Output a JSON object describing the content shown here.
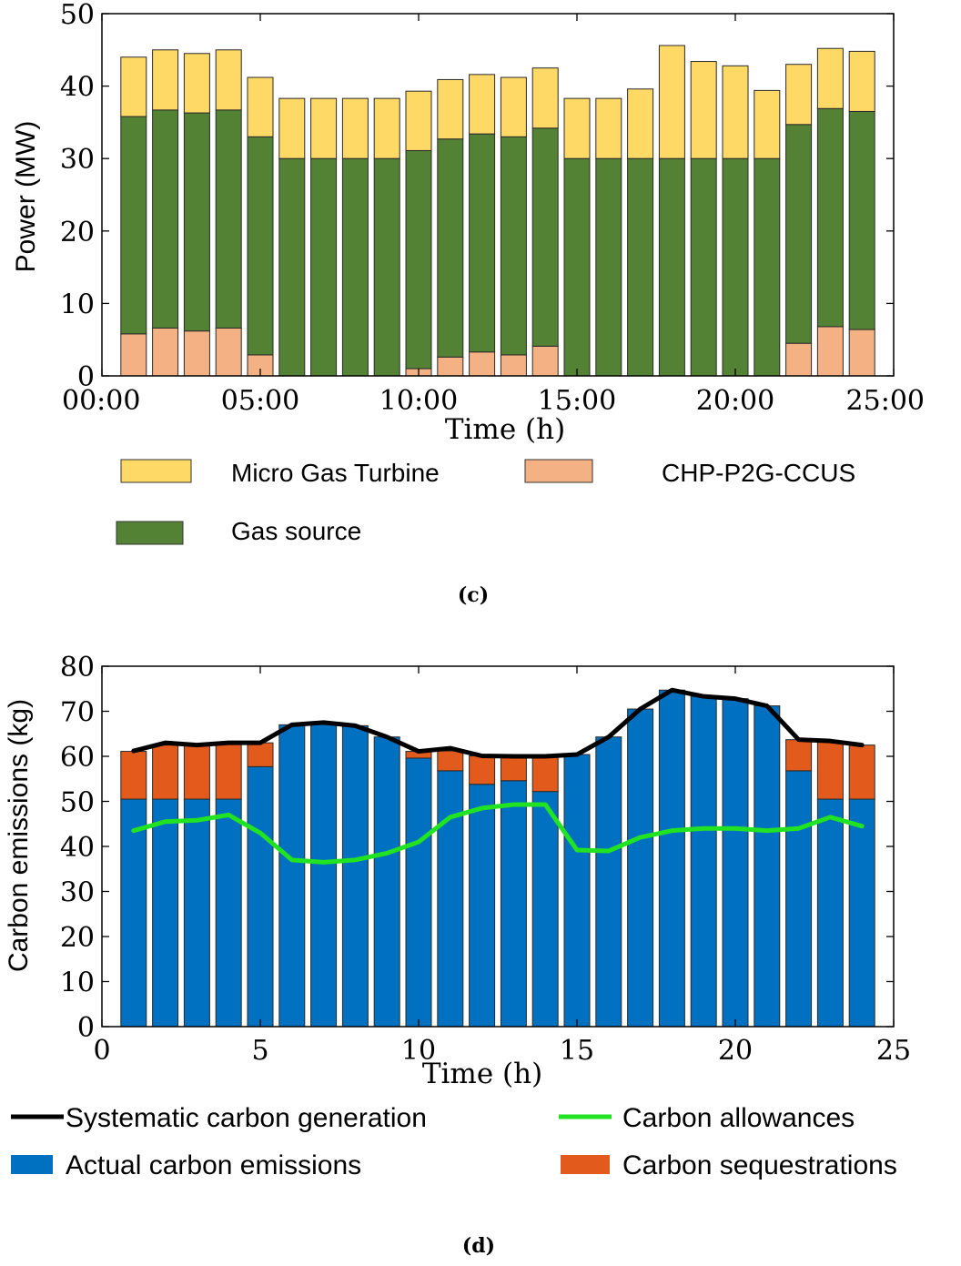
{
  "colors": {
    "micro_gas_turbine": "#FFD966",
    "chp_p2g_ccus": "#F4B183",
    "gas_source": "#548235",
    "actual_emissions": "#0070C0",
    "sequestrations": "#E25A1C",
    "systematic_line": "#000000",
    "allowances_line": "#22E322"
  },
  "chart_data": [
    {
      "id": "c",
      "type": "bar",
      "stacked": true,
      "panel_label": "(c)",
      "xlabel": "Time (h)",
      "ylabel": "Power (MW)",
      "ylim": [
        0,
        50
      ],
      "yticks": [
        0,
        10,
        20,
        30,
        40,
        50
      ],
      "xlim": [
        0,
        25
      ],
      "xticks": [
        0,
        5,
        10,
        15,
        20,
        25
      ],
      "xticklabels": [
        "00:00",
        "05:00",
        "10:00",
        "15:00",
        "20:00",
        "25:00"
      ],
      "x": [
        1,
        2,
        3,
        4,
        5,
        6,
        7,
        8,
        9,
        10,
        11,
        12,
        13,
        14,
        15,
        16,
        17,
        18,
        19,
        20,
        21,
        22,
        23,
        24
      ],
      "series": [
        {
          "name": "CHP-P2G-CCUS",
          "color_key": "chp_p2g_ccus",
          "values": [
            5.8,
            6.6,
            6.2,
            6.6,
            2.9,
            0,
            0,
            0,
            0,
            1.0,
            2.6,
            3.3,
            2.9,
            4.1,
            0,
            0,
            0,
            0,
            0,
            0,
            0,
            4.5,
            6.8,
            6.4
          ]
        },
        {
          "name": "Gas source",
          "color_key": "gas_source",
          "values": [
            30.0,
            30.1,
            30.1,
            30.1,
            30.1,
            30.0,
            30.0,
            30.0,
            30.0,
            30.1,
            30.1,
            30.1,
            30.1,
            30.1,
            30.0,
            30.0,
            30.0,
            30.0,
            30.0,
            30.0,
            30.0,
            30.2,
            30.1,
            30.1
          ]
        },
        {
          "name": "Micro Gas Turbine",
          "color_key": "micro_gas_turbine",
          "values": [
            8.2,
            8.3,
            8.2,
            8.3,
            8.2,
            8.3,
            8.3,
            8.3,
            8.3,
            8.2,
            8.2,
            8.2,
            8.2,
            8.3,
            8.3,
            8.3,
            9.6,
            15.6,
            13.4,
            12.8,
            9.4,
            8.3,
            8.3,
            8.3
          ]
        }
      ],
      "legend": [
        "Micro Gas Turbine",
        "CHP-P2G-CCUS",
        "Gas source"
      ]
    },
    {
      "id": "d",
      "type": "bar",
      "stacked": true,
      "panel_label": "(d)",
      "xlabel": "Time (h)",
      "ylabel": "Carbon  emissions (kg)",
      "ylim": [
        0,
        80
      ],
      "yticks": [
        0,
        10,
        20,
        30,
        40,
        50,
        60,
        70,
        80
      ],
      "xlim": [
        0,
        25
      ],
      "xticks": [
        0,
        5,
        10,
        15,
        20,
        25
      ],
      "xticklabels": [
        "0",
        "5",
        "10",
        "15",
        "20",
        "25"
      ],
      "x": [
        1,
        2,
        3,
        4,
        5,
        6,
        7,
        8,
        9,
        10,
        11,
        12,
        13,
        14,
        15,
        16,
        17,
        18,
        19,
        20,
        21,
        22,
        23,
        24
      ],
      "series": [
        {
          "name": "Actual carbon emissions",
          "color_key": "actual_emissions",
          "values": [
            50.5,
            50.5,
            50.5,
            50.5,
            57.7,
            67.0,
            67.3,
            66.8,
            64.3,
            59.6,
            56.8,
            53.8,
            54.6,
            52.2,
            60.4,
            64.3,
            70.5,
            74.7,
            73.3,
            72.8,
            71.2,
            56.8,
            50.5,
            50.5
          ]
        },
        {
          "name": "Carbon sequestrations",
          "color_key": "sequestrations",
          "values": [
            10.6,
            12.0,
            12.0,
            12.3,
            5.3,
            0,
            0,
            0,
            0,
            1.5,
            4.4,
            6.3,
            5.6,
            7.6,
            0,
            0,
            0,
            0,
            0,
            0,
            0,
            6.9,
            12.7,
            12.0
          ]
        }
      ],
      "lines": [
        {
          "name": "Systematic carbon generation",
          "color_key": "systematic_line",
          "values": [
            61.2,
            63.0,
            62.5,
            63.0,
            63.0,
            67.0,
            67.5,
            66.8,
            64.3,
            61.1,
            61.8,
            60.1,
            60.0,
            60.0,
            60.4,
            64.3,
            70.5,
            74.7,
            73.3,
            72.8,
            71.2,
            63.7,
            63.4,
            62.5
          ]
        },
        {
          "name": "Carbon allowances",
          "color_key": "allowances_line",
          "values": [
            43.5,
            45.5,
            45.8,
            47.0,
            43.0,
            37.0,
            36.5,
            37.0,
            38.5,
            41.0,
            46.5,
            48.5,
            49.3,
            49.3,
            39.2,
            39.0,
            42.0,
            43.5,
            44.0,
            44.0,
            43.5,
            44.0,
            46.5,
            44.5
          ]
        }
      ],
      "legend": [
        "Systematic carbon generation",
        "Carbon allowances",
        "Actual carbon emissions",
        "Carbon sequestrations"
      ]
    }
  ]
}
